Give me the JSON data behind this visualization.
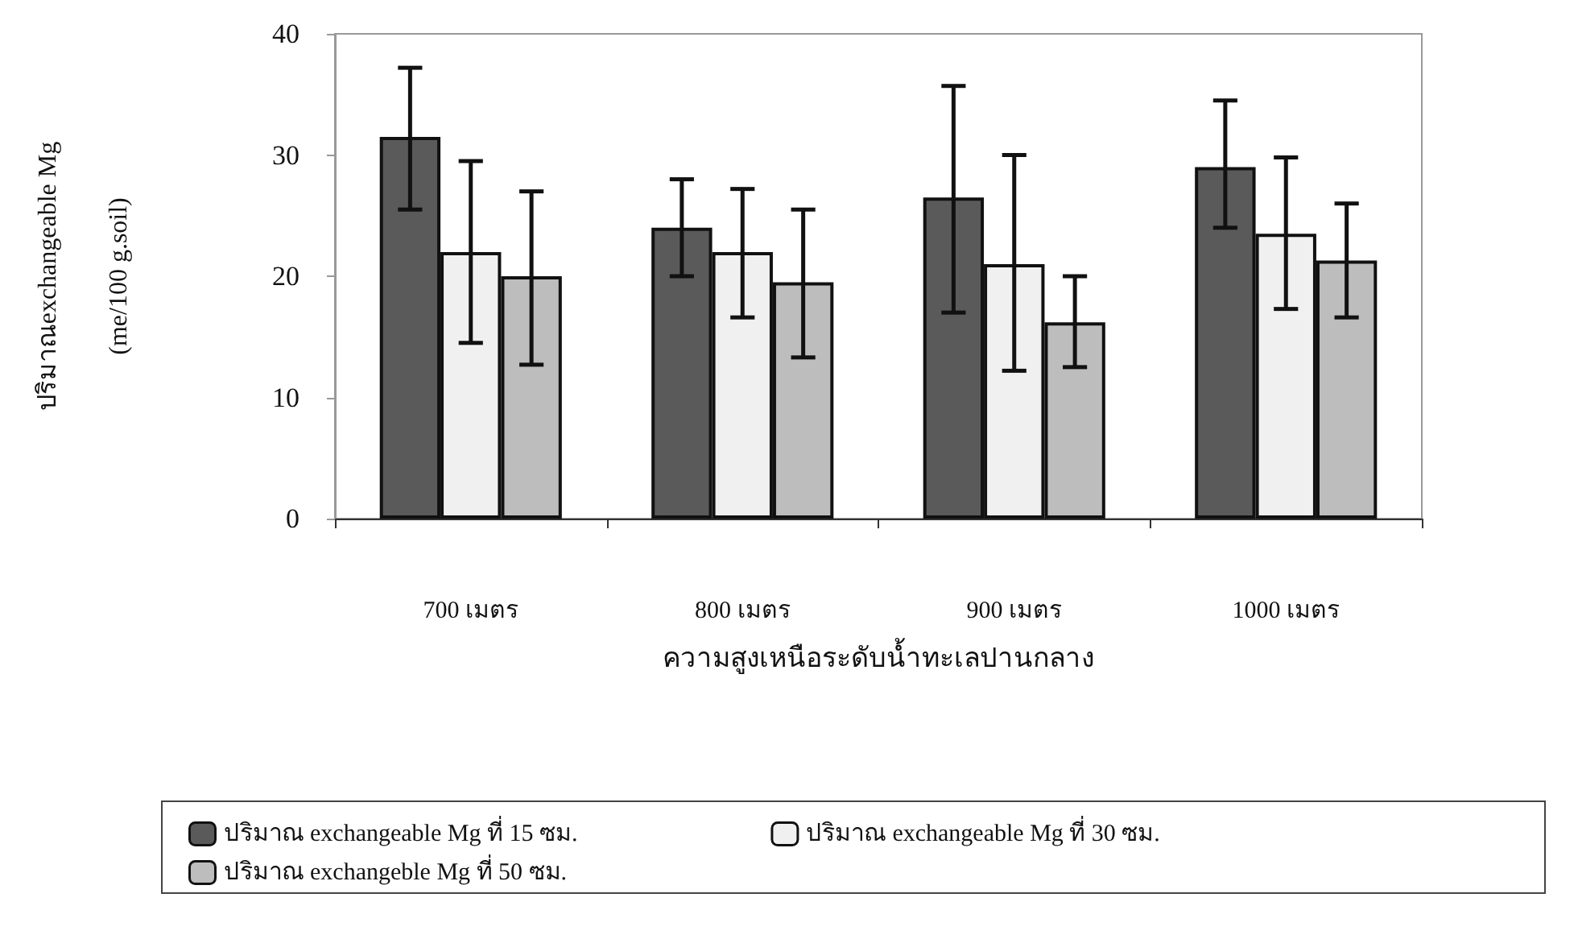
{
  "chart_data": {
    "type": "bar",
    "xlabel": "ความสูงเหนือระดับน้ำทะเลปานกลาง",
    "ylabel": "ปริมาณexchangeable Mg\n(me/100 g.soil)",
    "categories": [
      "700 เมตร",
      "800 เมตร",
      "900 เมตร",
      "1000 เมตร"
    ],
    "series": [
      {
        "name": "ปริมาณ exchangeable Mg ที่ 15 ซม.",
        "color": "#5a5a5a",
        "values": [
          31.5,
          24,
          26.5,
          29
        ],
        "errors": [
          [
            25.5,
            37.2
          ],
          [
            20,
            28
          ],
          [
            17,
            35.7
          ],
          [
            24,
            34.5
          ]
        ]
      },
      {
        "name": "ปริมาณ exchangeable Mg ที่ 30 ซม.",
        "color": "#f0f0f0",
        "values": [
          22,
          22,
          21,
          23.5
        ],
        "errors": [
          [
            14.5,
            29.5
          ],
          [
            16.6,
            27.2
          ],
          [
            12.2,
            30
          ],
          [
            17.3,
            29.8
          ]
        ]
      },
      {
        "name": "ปริมาณ exchangeble Mg ที่ 50 ซม.",
        "color": "#bdbdbd",
        "values": [
          20,
          19.5,
          16.2,
          21.3
        ],
        "errors": [
          [
            12.7,
            27
          ],
          [
            13.3,
            25.5
          ],
          [
            12.5,
            20
          ],
          [
            16.6,
            26
          ]
        ]
      }
    ],
    "ylim": [
      0,
      40
    ],
    "yticks": [
      0,
      10,
      20,
      30,
      40
    ],
    "grid": false,
    "legend": "bottom"
  }
}
